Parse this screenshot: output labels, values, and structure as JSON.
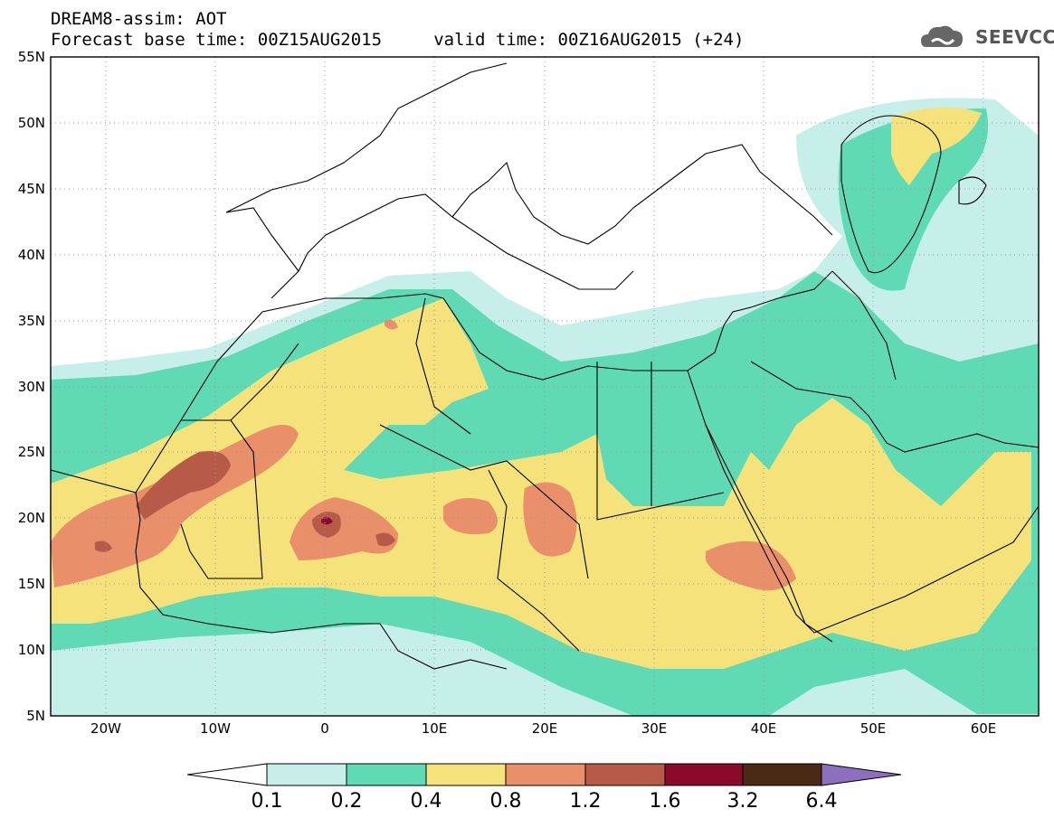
{
  "header": {
    "title": "DREAM8-assim: AOT",
    "subtitle": "Forecast base time: 00Z15AUG2015     valid time: 00Z16AUG2015 (+24)"
  },
  "logo": {
    "text": "SEEVCCC",
    "icon": "cloud-icon"
  },
  "map": {
    "lat_ticks": [
      "55N",
      "50N",
      "45N",
      "40N",
      "35N",
      "30N",
      "25N",
      "20N",
      "15N",
      "10N",
      "5N"
    ],
    "lon_ticks": [
      "20W",
      "10W",
      "0",
      "10E",
      "20E",
      "30E",
      "40E",
      "50E",
      "60E"
    ],
    "lon_range": [
      -25,
      65
    ],
    "lat_range": [
      5,
      55
    ]
  },
  "colorbar": {
    "levels": [
      "0.1",
      "0.2",
      "0.4",
      "0.8",
      "1.2",
      "1.6",
      "3.2",
      "6.4"
    ],
    "colors": [
      "#ffffff",
      "#c6efe9",
      "#5fdab4",
      "#f5e27a",
      "#e9906a",
      "#b85a48",
      "#8b0a2a",
      "#4a2a14",
      "#8e6fbf"
    ]
  }
}
